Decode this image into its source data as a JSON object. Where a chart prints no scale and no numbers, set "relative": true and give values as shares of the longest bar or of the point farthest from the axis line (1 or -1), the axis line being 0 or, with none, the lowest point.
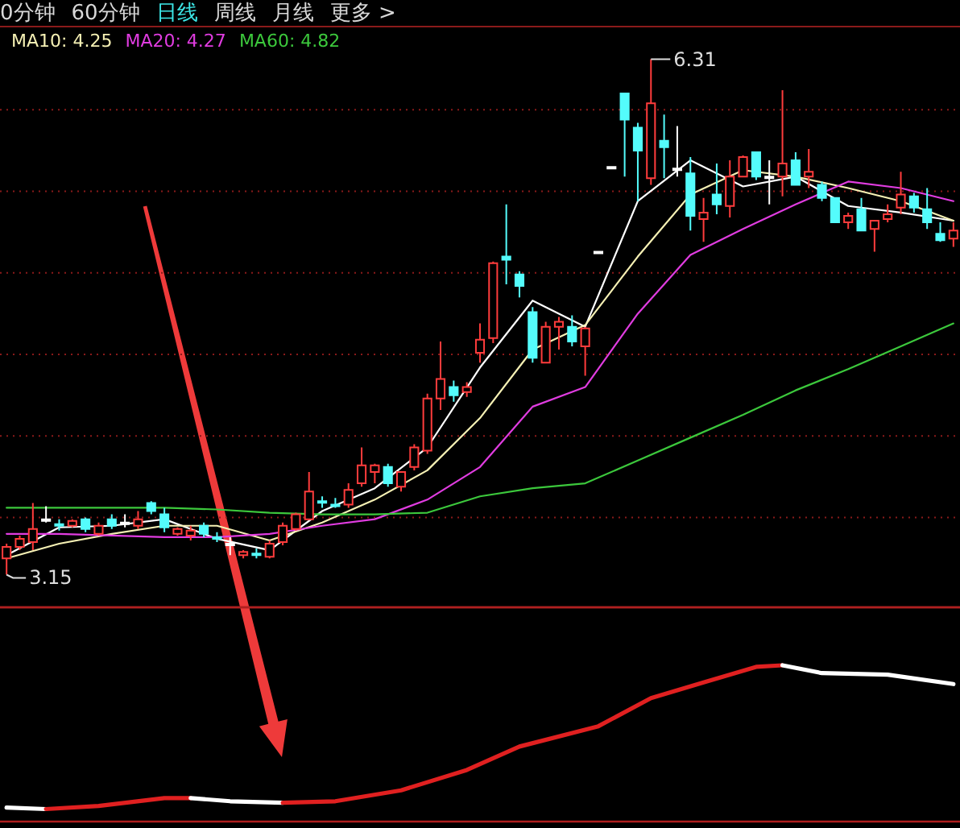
{
  "chart_data": [
    {
      "type": "candlestick",
      "legend": "top left",
      "grid": "y",
      "categories": [
        null,
        null,
        null,
        null,
        null,
        null,
        null,
        null,
        null,
        null,
        null,
        null,
        null,
        null,
        null,
        null,
        null,
        null,
        null,
        null,
        null,
        null,
        null,
        null,
        null,
        null,
        null,
        null,
        null,
        null,
        null,
        null,
        null,
        null,
        null,
        null,
        null,
        null,
        null,
        null,
        null,
        null,
        null,
        null,
        null,
        null,
        null,
        null,
        null,
        null,
        null,
        null,
        null,
        null,
        null,
        null,
        null,
        null,
        null,
        null,
        null,
        null,
        null,
        null,
        null,
        null,
        null,
        null,
        null,
        null,
        null,
        null,
        null
      ],
      "ylim": [
        2.95,
        6.51
      ],
      "yticks": [
        {
          "value": 3.5,
          "label": null
        },
        {
          "value": 4.0,
          "label": null
        },
        {
          "value": 4.5,
          "label": null
        },
        {
          "value": 5.0,
          "label": null
        },
        {
          "value": 5.5,
          "label": null
        },
        {
          "value": 6.0,
          "label": null
        }
      ],
      "ohlc": [
        [
          3.25,
          3.34,
          3.15,
          3.32
        ],
        [
          3.32,
          3.39,
          3.3,
          3.37
        ],
        [
          3.35,
          3.59,
          3.3,
          3.43
        ],
        [
          3.49,
          3.57,
          3.47,
          3.49
        ],
        [
          3.46,
          3.49,
          3.42,
          3.46
        ],
        [
          3.45,
          3.49,
          3.44,
          3.48
        ],
        [
          3.49,
          3.5,
          3.41,
          3.43
        ],
        [
          3.4,
          3.47,
          3.39,
          3.45
        ],
        [
          3.49,
          3.52,
          3.43,
          3.45
        ],
        [
          3.47,
          3.52,
          3.44,
          3.47
        ],
        [
          3.45,
          3.54,
          3.43,
          3.49
        ],
        [
          3.59,
          3.6,
          3.52,
          3.54
        ],
        [
          3.52,
          3.56,
          3.41,
          3.44
        ],
        [
          3.4,
          3.44,
          3.39,
          3.43
        ],
        [
          3.39,
          3.45,
          3.36,
          3.42
        ],
        [
          3.45,
          3.47,
          3.38,
          3.4
        ],
        [
          3.38,
          3.41,
          3.35,
          3.38
        ],
        [
          3.34,
          3.38,
          3.27,
          3.34
        ],
        [
          3.27,
          3.3,
          3.25,
          3.29
        ],
        [
          3.28,
          3.31,
          3.25,
          3.28
        ],
        [
          3.26,
          3.36,
          3.25,
          3.34
        ],
        [
          3.35,
          3.47,
          3.33,
          3.45
        ],
        [
          3.43,
          3.53,
          3.42,
          3.52
        ],
        [
          3.49,
          3.78,
          3.49,
          3.66
        ],
        [
          3.6,
          3.63,
          3.56,
          3.6
        ],
        [
          3.58,
          3.62,
          3.56,
          3.58
        ],
        [
          3.58,
          3.71,
          3.56,
          3.67
        ],
        [
          3.71,
          3.93,
          3.69,
          3.82
        ],
        [
          3.78,
          3.83,
          3.71,
          3.82
        ],
        [
          3.81,
          3.83,
          3.69,
          3.71
        ],
        [
          3.69,
          3.78,
          3.66,
          3.78
        ],
        [
          3.81,
          3.95,
          3.79,
          3.93
        ],
        [
          3.91,
          4.26,
          3.89,
          4.23
        ],
        [
          4.23,
          4.58,
          4.16,
          4.35
        ],
        [
          4.3,
          4.34,
          4.21,
          4.25
        ],
        [
          4.27,
          4.33,
          4.24,
          4.3
        ],
        [
          4.51,
          4.69,
          4.45,
          4.59
        ],
        [
          4.6,
          5.07,
          4.57,
          5.06
        ],
        [
          5.1,
          5.42,
          4.93,
          5.08
        ],
        [
          4.99,
          5.01,
          4.85,
          4.92
        ],
        [
          4.76,
          4.79,
          4.45,
          4.48
        ],
        [
          4.45,
          4.7,
          4.45,
          4.67
        ],
        [
          4.67,
          4.73,
          4.53,
          4.7
        ],
        [
          4.67,
          4.74,
          4.55,
          4.58
        ],
        [
          4.55,
          4.67,
          4.37,
          4.66
        ],
        [
          5.13,
          5.13,
          5.13,
          5.13
        ],
        [
          5.65,
          5.65,
          5.65,
          5.65
        ],
        [
          6.1,
          6.1,
          5.59,
          5.94
        ],
        [
          5.89,
          5.92,
          5.44,
          5.75
        ],
        [
          5.58,
          6.31,
          5.54,
          6.04
        ],
        [
          5.81,
          5.97,
          5.58,
          5.77
        ],
        [
          5.64,
          5.9,
          5.59,
          5.64
        ],
        [
          5.61,
          5.71,
          5.26,
          5.35
        ],
        [
          5.33,
          5.46,
          5.19,
          5.37
        ],
        [
          5.48,
          5.67,
          5.36,
          5.42
        ],
        [
          5.41,
          5.69,
          5.34,
          5.59
        ],
        [
          5.59,
          5.72,
          5.59,
          5.71
        ],
        [
          5.74,
          5.74,
          5.57,
          5.59
        ],
        [
          5.59,
          5.69,
          5.42,
          5.59
        ],
        [
          5.59,
          6.12,
          5.47,
          5.67
        ],
        [
          5.69,
          5.74,
          5.54,
          5.54
        ],
        [
          5.59,
          5.76,
          5.52,
          5.62
        ],
        [
          5.54,
          5.56,
          5.44,
          5.46
        ],
        [
          5.46,
          5.46,
          5.31,
          5.31
        ],
        [
          5.31,
          5.37,
          5.27,
          5.35
        ],
        [
          5.39,
          5.46,
          5.26,
          5.26
        ],
        [
          5.27,
          5.32,
          5.13,
          5.32
        ],
        [
          5.33,
          5.42,
          5.31,
          5.36
        ],
        [
          5.4,
          5.62,
          5.36,
          5.48
        ],
        [
          5.47,
          5.49,
          5.37,
          5.4
        ],
        [
          5.39,
          5.52,
          5.27,
          5.31
        ],
        [
          5.24,
          5.31,
          5.19,
          5.2
        ],
        [
          5.21,
          5.31,
          5.16,
          5.26
        ]
      ],
      "colors": [
        "#ff3c3c",
        "#ff3c3c",
        "#ff3c3c",
        "#ffffff",
        "#54fcfc",
        "#ff3c3c",
        "#54fcfc",
        "#ff3c3c",
        "#54fcfc",
        "#ffffff",
        "#ff3c3c",
        "#54fcfc",
        "#54fcfc",
        "#ff3c3c",
        "#ff3c3c",
        "#54fcfc",
        "#54fcfc",
        "#ffffff",
        "#ff3c3c",
        "#54fcfc",
        "#ff3c3c",
        "#ff3c3c",
        "#ff3c3c",
        "#ff3c3c",
        "#54fcfc",
        "#54fcfc",
        "#ff3c3c",
        "#ff3c3c",
        "#ff3c3c",
        "#54fcfc",
        "#ff3c3c",
        "#ff3c3c",
        "#ff3c3c",
        "#ff3c3c",
        "#54fcfc",
        "#ff3c3c",
        "#ff3c3c",
        "#ff3c3c",
        "#54fcfc",
        "#54fcfc",
        "#54fcfc",
        "#ff3c3c",
        "#ff3c3c",
        "#54fcfc",
        "#ff3c3c",
        "#ffffff",
        "#ffffff",
        "#54fcfc",
        "#54fcfc",
        "#ff3c3c",
        "#54fcfc",
        "#ffffff",
        "#54fcfc",
        "#ff3c3c",
        "#54fcfc",
        "#ff3c3c",
        "#ff3c3c",
        "#54fcfc",
        "#ffffff",
        "#ff3c3c",
        "#54fcfc",
        "#ff3c3c",
        "#54fcfc",
        "#54fcfc",
        "#ff3c3c",
        "#54fcfc",
        "#ff3c3c",
        "#ff3c3c",
        "#ff3c3c",
        "#54fcfc",
        "#54fcfc",
        "#54fcfc",
        "#ff3c3c"
      ],
      "series": [
        {
          "type": "line",
          "color": "#ffffff",
          "values": [
            3.27,
            null,
            null,
            null,
            3.44,
            null,
            null,
            null,
            3.45,
            null,
            null,
            null,
            3.49,
            null,
            null,
            null,
            3.37,
            null,
            null,
            null,
            3.3,
            null,
            null,
            null,
            3.54,
            null,
            null,
            null,
            3.68,
            null,
            null,
            null,
            3.93,
            null,
            null,
            null,
            4.42,
            null,
            null,
            null,
            4.83,
            null,
            null,
            null,
            4.67,
            null,
            null,
            null,
            5.44,
            null,
            null,
            null,
            5.69,
            null,
            null,
            null,
            5.53,
            null,
            null,
            null,
            5.59,
            null,
            null,
            null,
            5.41,
            null,
            null,
            null,
            5.37,
            null,
            null,
            null,
            5.32
          ]
        },
        {
          "type": "line",
          "name": "MA10: 4.25",
          "color": "#f5f0b4",
          "values": [
            3.25,
            null,
            null,
            null,
            3.34,
            null,
            null,
            null,
            3.4,
            null,
            null,
            null,
            3.45,
            null,
            null,
            null,
            3.45,
            null,
            null,
            null,
            3.36,
            null,
            null,
            null,
            3.47,
            null,
            null,
            null,
            3.61,
            null,
            null,
            null,
            3.79,
            null,
            null,
            null,
            4.11,
            null,
            null,
            null,
            4.53,
            null,
            null,
            null,
            4.68,
            null,
            null,
            null,
            5.1,
            null,
            null,
            null,
            5.48,
            null,
            null,
            null,
            5.63,
            null,
            null,
            null,
            5.59,
            null,
            null,
            null,
            5.52,
            null,
            null,
            null,
            5.44,
            null,
            null,
            null,
            5.32
          ]
        },
        {
          "type": "line",
          "name": "MA20: 4.27",
          "color": "#e03ce0",
          "values": [
            3.4,
            null,
            null,
            null,
            3.4,
            null,
            null,
            null,
            3.39,
            null,
            null,
            null,
            3.38,
            null,
            null,
            null,
            3.38,
            null,
            null,
            null,
            3.4,
            null,
            null,
            null,
            3.45,
            null,
            null,
            null,
            3.49,
            null,
            null,
            null,
            3.61,
            null,
            null,
            null,
            3.81,
            null,
            null,
            null,
            4.18,
            null,
            null,
            null,
            4.3,
            null,
            null,
            null,
            4.75,
            null,
            null,
            null,
            5.11,
            null,
            null,
            null,
            5.27,
            null,
            null,
            null,
            5.42,
            null,
            null,
            null,
            5.56,
            null,
            null,
            null,
            5.52,
            null,
            null,
            null,
            5.44
          ]
        },
        {
          "type": "line",
          "name": "MA60: 4.82",
          "color": "#3cc83c",
          "values": [
            3.56,
            null,
            null,
            null,
            3.56,
            null,
            null,
            null,
            3.56,
            null,
            null,
            null,
            3.56,
            null,
            null,
            null,
            3.55,
            null,
            null,
            null,
            3.53,
            null,
            null,
            null,
            3.52,
            null,
            null,
            null,
            3.52,
            null,
            null,
            null,
            3.53,
            null,
            null,
            null,
            3.63,
            null,
            null,
            null,
            3.68,
            null,
            null,
            null,
            3.71,
            null,
            null,
            null,
            3.85,
            null,
            null,
            null,
            3.99,
            null,
            null,
            null,
            4.13,
            null,
            null,
            null,
            4.28,
            null,
            null,
            null,
            4.41,
            null,
            null,
            null,
            4.55,
            null,
            null,
            null,
            4.69
          ]
        }
      ],
      "annotations": [
        "6.31",
        "3.15",
        "0分钟",
        "60分钟",
        "日线",
        "周线",
        "月线",
        "更多 >"
      ]
    },
    {
      "type": "line",
      "relative": true,
      "categories": [
        null,
        null,
        null,
        null,
        null,
        null,
        null,
        null,
        null,
        null,
        null,
        null,
        null,
        null,
        null,
        null,
        null,
        null,
        null,
        null,
        null,
        null,
        null,
        null,
        null,
        null,
        null,
        null,
        null,
        null,
        null,
        null,
        null,
        null,
        null,
        null,
        null,
        null,
        null,
        null,
        null,
        null,
        null,
        null,
        null,
        null,
        null,
        null,
        null,
        null,
        null,
        null,
        null,
        null,
        null,
        null,
        null,
        null,
        null,
        null,
        null,
        null,
        null,
        null,
        null,
        null,
        null,
        null,
        null,
        null,
        null,
        null,
        null
      ],
      "series": [
        {
          "color": "#ffffff",
          "values": [
            0.09,
            null,
            null,
            0.08,
            null,
            null,
            null,
            null,
            null,
            null,
            null,
            null,
            null,
            null,
            null,
            null,
            null,
            null,
            null,
            null,
            null,
            null,
            null,
            null,
            null,
            null,
            null,
            null,
            null,
            null,
            null,
            null,
            null,
            null,
            null,
            null,
            null,
            null,
            null,
            null,
            null,
            null,
            null,
            null,
            null,
            null,
            null,
            null,
            null,
            null,
            null,
            null,
            null,
            null,
            null,
            null,
            null,
            null,
            null,
            null,
            null,
            null,
            null,
            null,
            null,
            null,
            null,
            null,
            null,
            null,
            null,
            null,
            null
          ]
        },
        {
          "color": "#e02020",
          "values": [
            null,
            null,
            null,
            0.08,
            null,
            null,
            null,
            0.1,
            null,
            null,
            null,
            null,
            0.15,
            null,
            0.15,
            null,
            null,
            null,
            null,
            null,
            null,
            null,
            null,
            null,
            null,
            null,
            null,
            null,
            null,
            null,
            null,
            null,
            null,
            null,
            null,
            null,
            null,
            null,
            null,
            null,
            null,
            null,
            null,
            null,
            null,
            null,
            null,
            null,
            null,
            null,
            null,
            null,
            null,
            null,
            null,
            null,
            null,
            null,
            null,
            null,
            null,
            null,
            null,
            null,
            null,
            null,
            null,
            null,
            null,
            null,
            null,
            null,
            null
          ]
        },
        {
          "color": "#ffffff",
          "values": [
            null,
            null,
            null,
            null,
            null,
            null,
            null,
            null,
            null,
            null,
            null,
            null,
            null,
            null,
            0.15,
            null,
            null,
            0.13,
            null,
            null,
            null,
            0.12,
            null,
            null,
            null,
            null,
            null,
            null,
            null,
            null,
            null,
            null,
            null,
            null,
            null,
            null,
            null,
            null,
            null,
            null,
            null,
            null,
            null,
            null,
            null,
            null,
            null,
            null,
            null,
            null,
            null,
            null,
            null,
            null,
            null,
            null,
            null,
            null,
            null,
            null,
            null,
            null,
            null,
            null,
            null,
            null,
            null,
            null,
            null,
            null,
            null,
            null,
            null
          ]
        },
        {
          "color": "#e02020",
          "values": [
            null,
            null,
            null,
            null,
            null,
            null,
            null,
            null,
            null,
            null,
            null,
            null,
            null,
            null,
            null,
            null,
            null,
            null,
            null,
            null,
            null,
            0.12,
            null,
            null,
            null,
            0.13,
            null,
            null,
            null,
            null,
            0.2,
            null,
            null,
            null,
            null,
            0.33,
            null,
            null,
            null,
            0.48,
            null,
            null,
            null,
            null,
            null,
            0.61,
            null,
            null,
            null,
            0.79,
            null,
            null,
            null,
            0.89,
            null,
            null,
            null,
            0.99,
            null,
            1,
            null,
            null,
            null,
            null,
            null,
            null,
            null,
            null,
            null,
            null,
            null,
            null,
            null
          ]
        },
        {
          "color": "#ffffff",
          "values": [
            null,
            null,
            null,
            null,
            null,
            null,
            null,
            null,
            null,
            null,
            null,
            null,
            null,
            null,
            null,
            null,
            null,
            null,
            null,
            null,
            null,
            null,
            null,
            null,
            null,
            null,
            null,
            null,
            null,
            null,
            null,
            null,
            null,
            null,
            null,
            null,
            null,
            null,
            null,
            null,
            null,
            null,
            null,
            null,
            null,
            null,
            null,
            null,
            null,
            null,
            null,
            null,
            null,
            null,
            null,
            null,
            null,
            null,
            null,
            1,
            null,
            null,
            0.95,
            null,
            null,
            null,
            null,
            0.94,
            null,
            null,
            null,
            null,
            0.88
          ]
        }
      ]
    }
  ]
}
